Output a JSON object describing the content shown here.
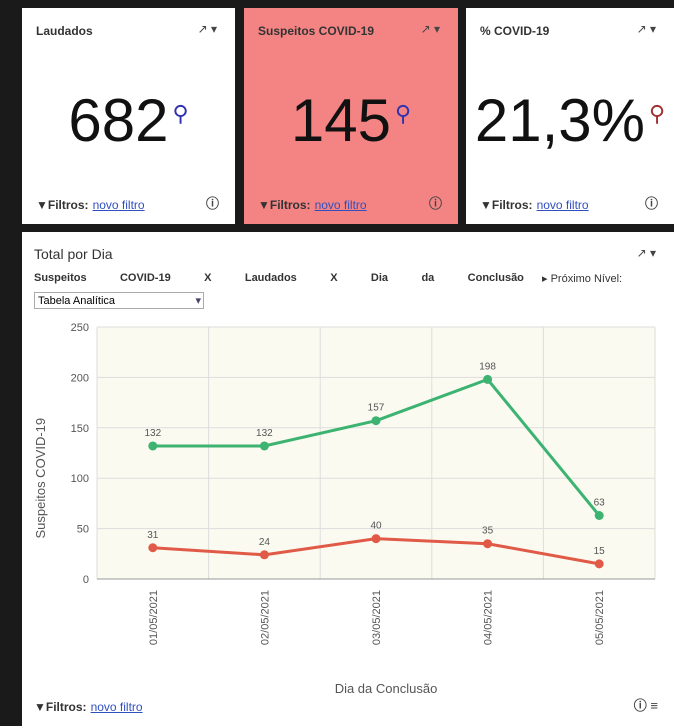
{
  "cards": [
    {
      "title": "Laudados",
      "value": "682",
      "filter_label": "Filtros:",
      "filter_link": "novo filtro"
    },
    {
      "title": "Suspeitos COVID-19",
      "value": "145",
      "filter_label": "Filtros:",
      "filter_link": "novo filtro"
    },
    {
      "title": "% COVID-19",
      "value": "21,3%",
      "filter_label": "Filtros:",
      "filter_link": "novo filtro"
    }
  ],
  "panel": {
    "title": "Total por Dia",
    "subtitle_words": [
      "Suspeitos",
      "COVID-19",
      "X",
      "Laudados",
      "X",
      "Dia",
      "da",
      "Conclusão"
    ],
    "next_level": "Próximo Nível:",
    "select": "Tabela Analítica",
    "filter_label": "Filtros:",
    "filter_link": "novo filtro"
  },
  "chart_data": {
    "type": "line",
    "categories": [
      "01/05/2021",
      "02/05/2021",
      "03/05/2021",
      "04/05/2021",
      "05/05/2021"
    ],
    "series": [
      {
        "color": "#3cb371",
        "values": [
          132,
          132,
          157,
          198,
          63
        ]
      },
      {
        "color": "#e05a47",
        "values": [
          31,
          24,
          40,
          35,
          15
        ]
      }
    ],
    "ylim": [
      0,
      250
    ],
    "yticks": [
      0,
      50,
      100,
      150,
      200,
      250
    ],
    "ylabel": "Suspeitos COVID-19",
    "xlabel": "Dia da Conclusão",
    "grid": true
  }
}
